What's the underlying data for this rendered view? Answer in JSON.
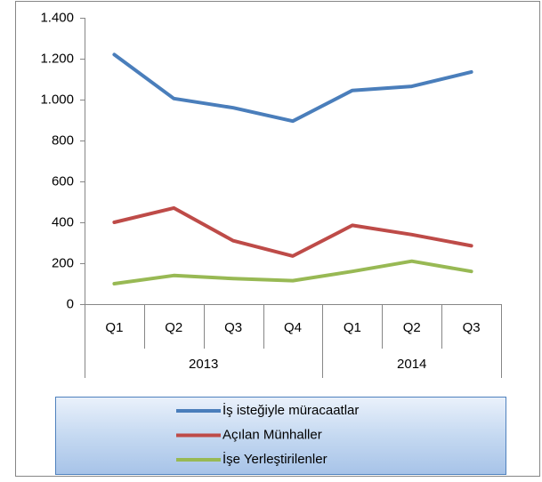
{
  "chart_data": {
    "type": "line",
    "groups": [
      {
        "label": "2013",
        "categories": [
          "Q1",
          "Q2",
          "Q3",
          "Q4"
        ]
      },
      {
        "label": "2014",
        "categories": [
          "Q1",
          "Q2",
          "Q3"
        ]
      }
    ],
    "series": [
      {
        "name": "İş isteğiyle müracaatlar",
        "color": "#4a7ebb",
        "values": [
          1220,
          1005,
          960,
          895,
          1045,
          1065,
          1135
        ]
      },
      {
        "name": "Açılan Münhaller",
        "color": "#be4b48",
        "values": [
          400,
          470,
          310,
          235,
          385,
          340,
          285
        ]
      },
      {
        "name": "İşe Yerleştirilenler",
        "color": "#98b954",
        "values": [
          100,
          140,
          125,
          115,
          160,
          210,
          160
        ]
      }
    ],
    "ylim": [
      0,
      1400
    ],
    "yticks": [
      0,
      200,
      400,
      600,
      800,
      {
        "value": 1000,
        "label": "1.000"
      },
      {
        "value": 1200,
        "label": "1.200"
      },
      {
        "value": 1400,
        "label": "1.400"
      }
    ],
    "grid": false,
    "legend": "bottom"
  }
}
